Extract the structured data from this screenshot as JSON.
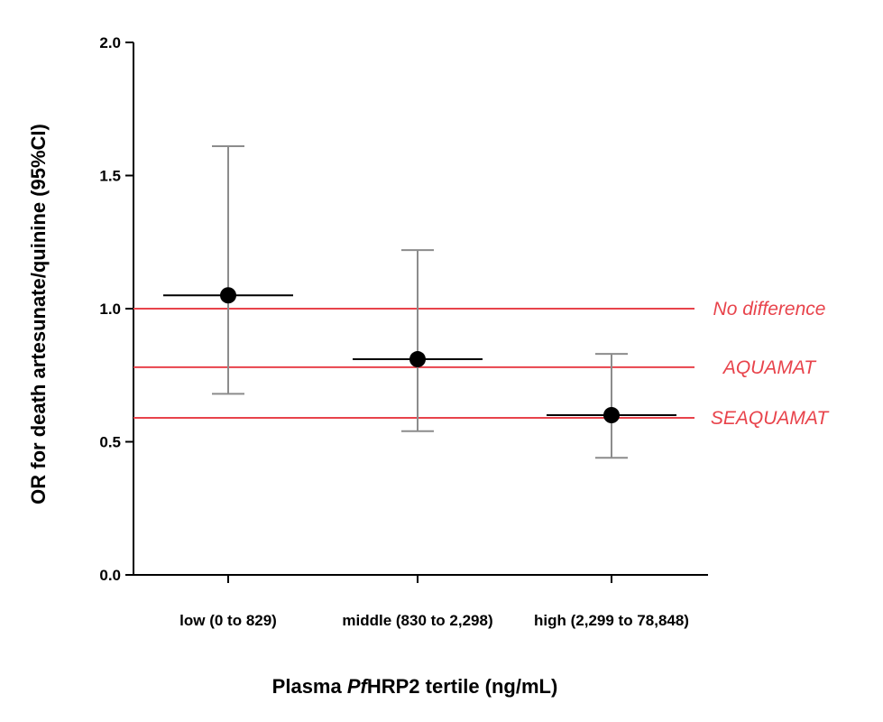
{
  "chart_data": {
    "type": "scatter",
    "ylabel": "OR for death artesunate/quinine (95%CI)",
    "xlabel": {
      "prefix": "Plasma ",
      "italic": "Pf",
      "suffix": "HRP2 tertile (ng/mL)"
    },
    "ylim": [
      0,
      2
    ],
    "yticks": [
      "0.0",
      "0.5",
      "1.0",
      "1.5",
      "2.0"
    ],
    "categories": [
      "low (0 to 829)",
      "middle (830 to 2,298)",
      "high (2,299 to 78,848)"
    ],
    "points": [
      {
        "category": "low (0 to 829)",
        "or": 1.05,
        "ci_low": 0.68,
        "ci_high": 1.61
      },
      {
        "category": "middle (830 to 2,298)",
        "or": 0.81,
        "ci_low": 0.54,
        "ci_high": 1.22
      },
      {
        "category": "high (2,299 to 78,848)",
        "or": 0.6,
        "ci_low": 0.44,
        "ci_high": 0.83
      }
    ],
    "reference_lines": [
      {
        "label": "No difference",
        "value": 1.0
      },
      {
        "label": "AQUAMAT",
        "value": 0.78
      },
      {
        "label": "SEAQUAMAT",
        "value": 0.59
      }
    ],
    "colors": {
      "reference": "#e8434b",
      "point": "#000000",
      "error_bar": "#8c8c8c"
    },
    "grid": false
  }
}
